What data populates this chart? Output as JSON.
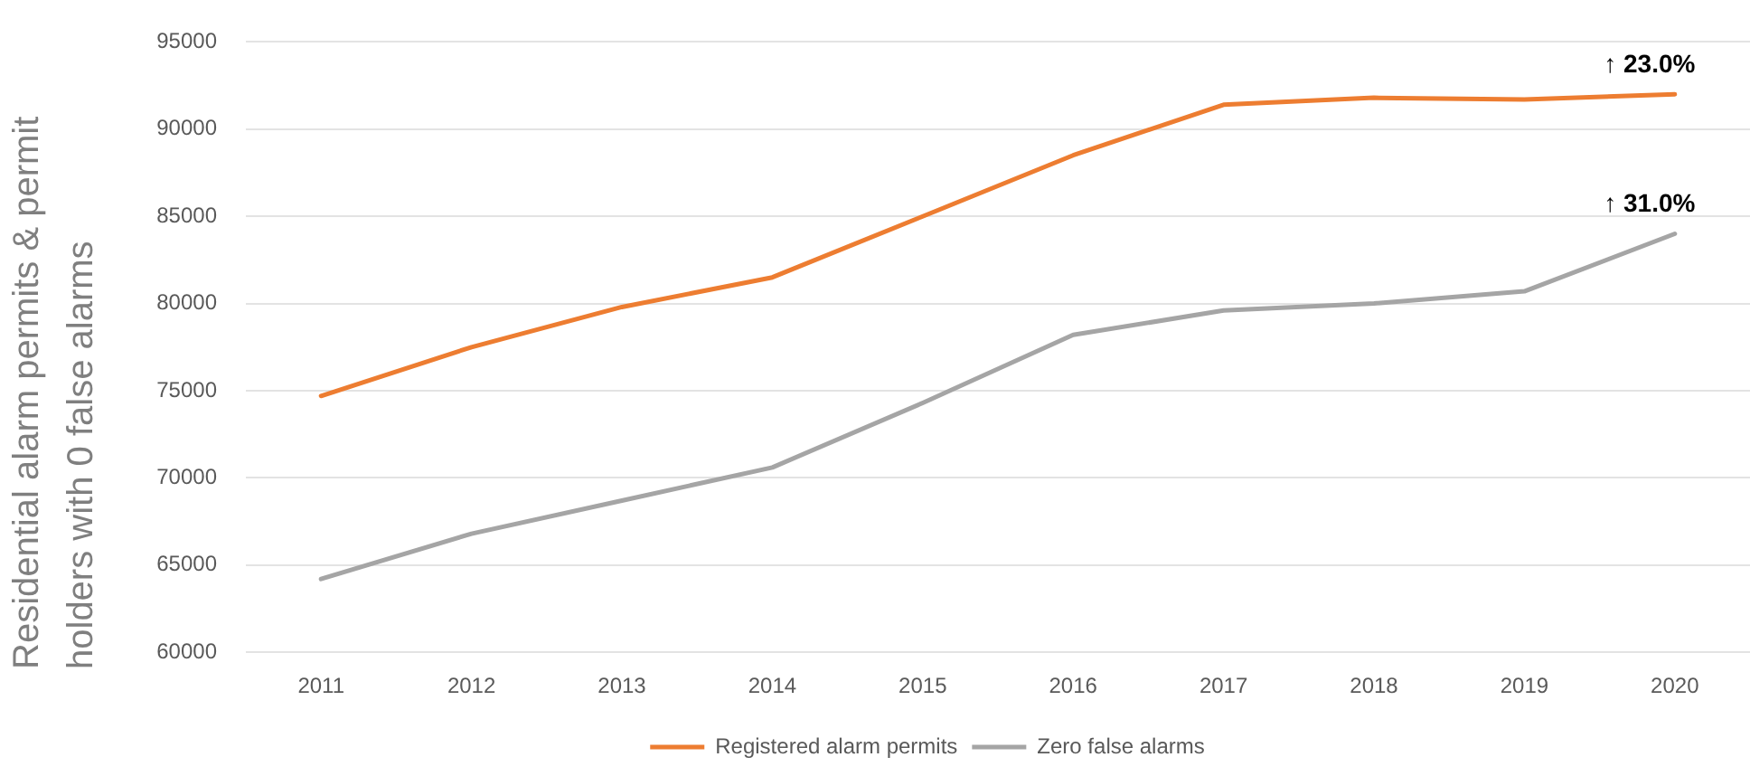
{
  "chart_data": {
    "type": "line",
    "ylabel": "Residential alarm permits & permit holders with 0 false alarms",
    "categories": [
      "2011",
      "2012",
      "2013",
      "2014",
      "2015",
      "2016",
      "2017",
      "2018",
      "2019",
      "2020"
    ],
    "series": [
      {
        "name": "Registered alarm permits",
        "color": "#ed7d31",
        "values": [
          74700,
          77500,
          79800,
          81500,
          85000,
          88500,
          91400,
          91800,
          91700,
          92000
        ]
      },
      {
        "name": "Zero false alarms",
        "color": "#a5a5a5",
        "values": [
          64200,
          66800,
          68700,
          70600,
          74300,
          78200,
          79600,
          80000,
          80700,
          84000
        ]
      }
    ],
    "ylim": [
      60000,
      95000
    ],
    "yticks": [
      60000,
      65000,
      70000,
      75000,
      80000,
      85000,
      90000,
      95000
    ],
    "grid": "y",
    "legend": "bottom",
    "marker": "none",
    "annotations": [
      {
        "text": "↑ 23.0%",
        "x": "2020",
        "y": 92000
      },
      {
        "text": "↑ 31.0%",
        "x": "2020",
        "y": 84000
      }
    ]
  }
}
